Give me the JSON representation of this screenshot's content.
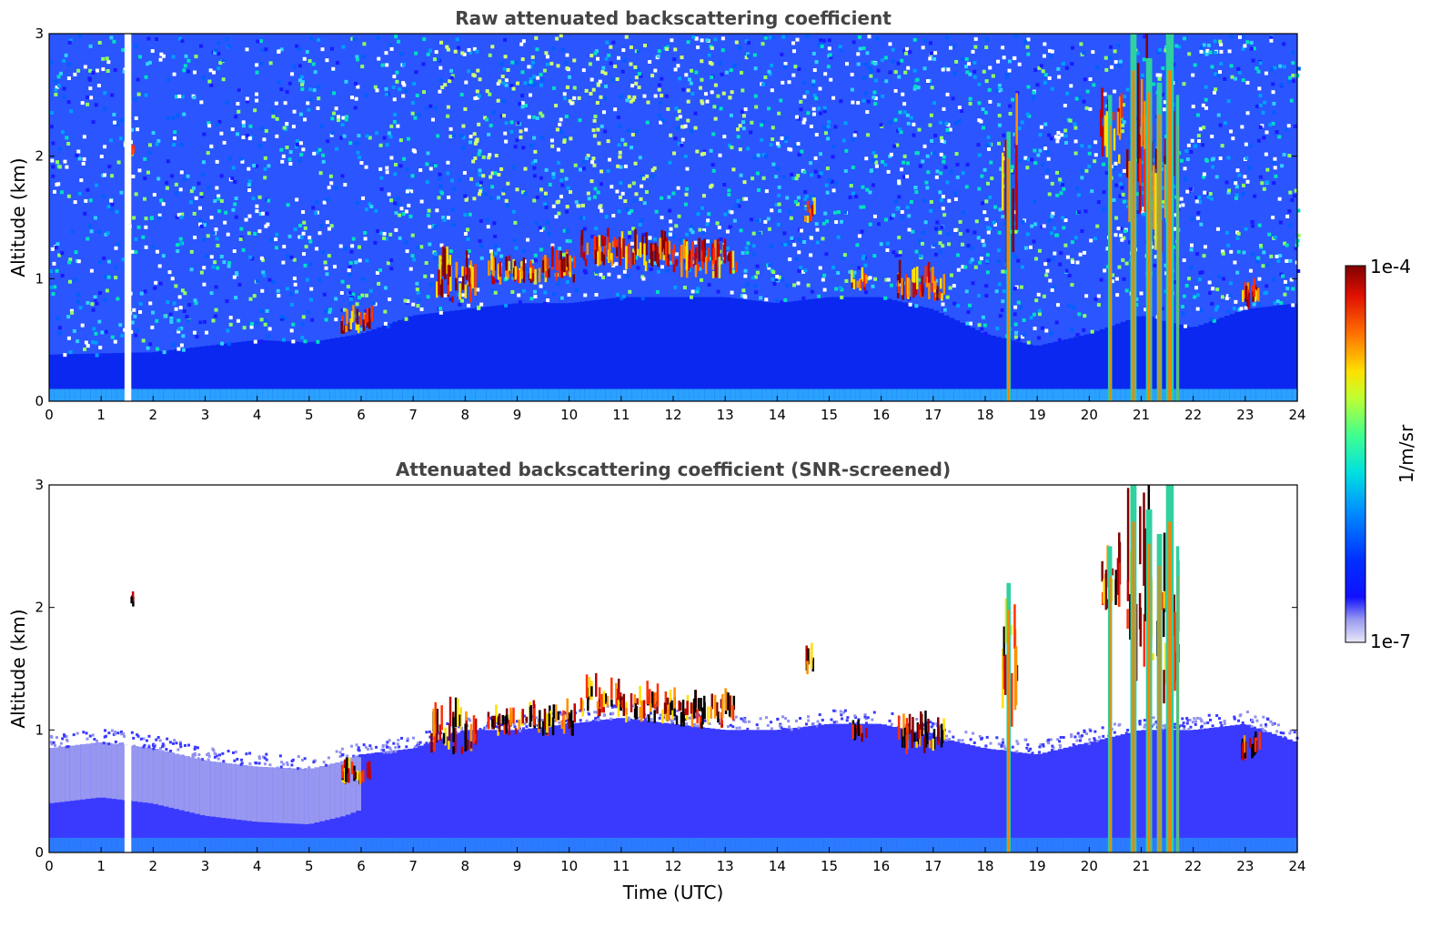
{
  "chart_data": [
    {
      "type": "heatmap",
      "title": "Raw attenuated backscattering coefficient",
      "xlabel": "",
      "ylabel": "Altitude (km)",
      "xlim": [
        0,
        24
      ],
      "ylim": [
        0,
        3
      ],
      "xticks": [
        "0",
        "1",
        "2",
        "3",
        "4",
        "5",
        "6",
        "7",
        "8",
        "9",
        "10",
        "11",
        "12",
        "13",
        "14",
        "15",
        "16",
        "17",
        "18",
        "19",
        "20",
        "21",
        "22",
        "23",
        "24"
      ],
      "yticks": [
        "0",
        "1",
        "2",
        "3"
      ],
      "screened": false,
      "data_gap": {
        "start": 1.45,
        "end": 1.58
      },
      "boundary_layer_top_km": [
        [
          0,
          0.38
        ],
        [
          2,
          0.4
        ],
        [
          3,
          0.45
        ],
        [
          4,
          0.5
        ],
        [
          5,
          0.48
        ],
        [
          6,
          0.55
        ],
        [
          7,
          0.7
        ],
        [
          8,
          0.75
        ],
        [
          9,
          0.8
        ],
        [
          10,
          0.8
        ],
        [
          11,
          0.85
        ],
        [
          12,
          0.85
        ],
        [
          13,
          0.85
        ],
        [
          14,
          0.8
        ],
        [
          15,
          0.85
        ],
        [
          16,
          0.85
        ],
        [
          17,
          0.75
        ],
        [
          18,
          0.55
        ],
        [
          19,
          0.45
        ],
        [
          20,
          0.55
        ],
        [
          21,
          0.7
        ],
        [
          22,
          0.6
        ],
        [
          23,
          0.75
        ],
        [
          24,
          0.8
        ]
      ],
      "cloud_segments": [
        {
          "t0": 1.55,
          "t1": 1.62,
          "z0": 2.0,
          "z1": 2.08
        },
        {
          "t0": 5.6,
          "t1": 6.2,
          "z0": 0.55,
          "z1": 0.72
        },
        {
          "t0": 7.3,
          "t1": 8.2,
          "z0": 0.8,
          "z1": 1.2
        },
        {
          "t0": 8.4,
          "t1": 9.2,
          "z0": 0.95,
          "z1": 1.15
        },
        {
          "t0": 9.2,
          "t1": 10.1,
          "z0": 0.95,
          "z1": 1.2
        },
        {
          "t0": 10.2,
          "t1": 11.0,
          "z0": 1.1,
          "z1": 1.4
        },
        {
          "t0": 11.0,
          "t1": 12.0,
          "z0": 1.05,
          "z1": 1.35
        },
        {
          "t0": 12.0,
          "t1": 13.2,
          "z0": 1.0,
          "z1": 1.3
        },
        {
          "t0": 14.5,
          "t1": 14.7,
          "z0": 1.45,
          "z1": 1.65
        },
        {
          "t0": 15.4,
          "t1": 15.7,
          "z0": 0.9,
          "z1": 1.05
        },
        {
          "t0": 16.3,
          "t1": 17.2,
          "z0": 0.8,
          "z1": 1.1
        },
        {
          "t0": 18.3,
          "t1": 18.6,
          "z0": 1.0,
          "z1": 2.4
        },
        {
          "t0": 20.2,
          "t1": 20.6,
          "z0": 1.9,
          "z1": 2.6
        },
        {
          "t0": 20.7,
          "t1": 21.2,
          "z0": 1.4,
          "z1": 3.0
        },
        {
          "t0": 21.2,
          "t1": 21.7,
          "z0": 1.2,
          "z1": 2.5
        },
        {
          "t0": 22.9,
          "t1": 23.3,
          "z0": 0.75,
          "z1": 0.95
        }
      ],
      "precip_streaks": [
        {
          "t": 18.45,
          "w": 0.08,
          "z1": 2.2
        },
        {
          "t": 20.4,
          "w": 0.08,
          "z1": 2.5
        },
        {
          "t": 20.85,
          "w": 0.12,
          "z1": 3.0
        },
        {
          "t": 21.15,
          "w": 0.12,
          "z1": 2.8
        },
        {
          "t": 21.35,
          "w": 0.1,
          "z1": 2.6
        },
        {
          "t": 21.55,
          "w": 0.15,
          "z1": 3.0
        },
        {
          "t": 21.7,
          "w": 0.06,
          "z1": 2.5
        }
      ]
    },
    {
      "type": "heatmap",
      "title": "Attenuated backscattering coefficient (SNR-screened)",
      "xlabel": "Time (UTC)",
      "ylabel": "Altitude (km)",
      "xlim": [
        0,
        24
      ],
      "ylim": [
        0,
        3
      ],
      "xticks": [
        "0",
        "1",
        "2",
        "3",
        "4",
        "5",
        "6",
        "7",
        "8",
        "9",
        "10",
        "11",
        "12",
        "13",
        "14",
        "15",
        "16",
        "17",
        "18",
        "19",
        "20",
        "21",
        "22",
        "23",
        "24"
      ],
      "yticks": [
        "0",
        "1",
        "2",
        "3"
      ],
      "screened": true,
      "data_gap": {
        "start": 1.45,
        "end": 1.58
      },
      "boundary_layer_top_km": [
        [
          0,
          0.85
        ],
        [
          1,
          0.9
        ],
        [
          2,
          0.85
        ],
        [
          3,
          0.75
        ],
        [
          4,
          0.7
        ],
        [
          5,
          0.68
        ],
        [
          5.7,
          0.75
        ],
        [
          6,
          0.8
        ],
        [
          7,
          0.85
        ],
        [
          8,
          1.0
        ],
        [
          9,
          1.0
        ],
        [
          10,
          1.05
        ],
        [
          11,
          1.1
        ],
        [
          12,
          1.05
        ],
        [
          13,
          1.0
        ],
        [
          14,
          1.0
        ],
        [
          15,
          1.05
        ],
        [
          16,
          1.05
        ],
        [
          17,
          0.95
        ],
        [
          18,
          0.85
        ],
        [
          19,
          0.8
        ],
        [
          20,
          0.9
        ],
        [
          21,
          1.0
        ],
        [
          22,
          1.0
        ],
        [
          23,
          1.05
        ],
        [
          24,
          0.9
        ]
      ],
      "colorbar": {
        "label": "1/m/sr",
        "min_label": "1e-7",
        "max_label": "1e-4",
        "colormap": "jet"
      }
    }
  ]
}
